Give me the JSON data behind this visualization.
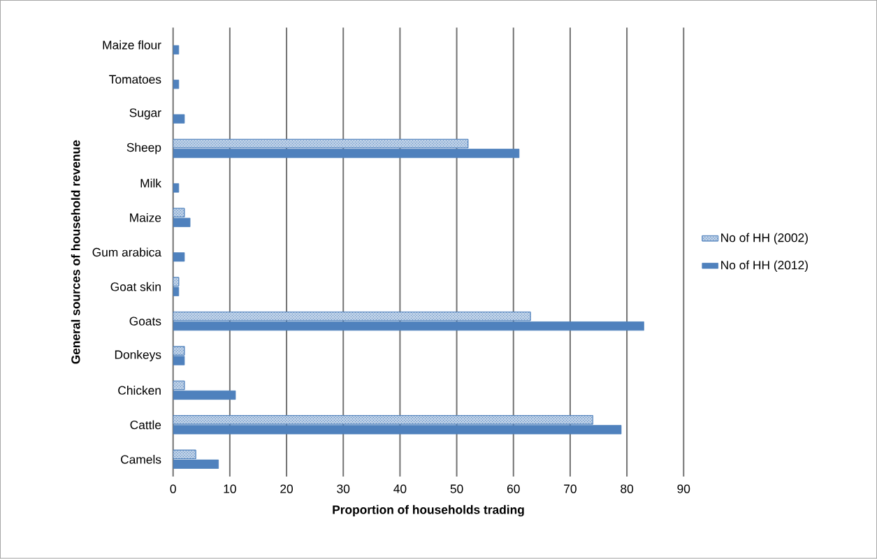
{
  "chart_data": {
    "type": "bar",
    "orientation": "horizontal",
    "xlabel": "Proportion of households trading",
    "ylabel": "General sources of household revenue",
    "categories": [
      "Maize flour",
      "Tomatoes",
      "Sugar",
      "Sheep",
      "Milk",
      "Maize",
      "Gum arabica",
      "Goat skin",
      "Goats",
      "Donkeys",
      "Chicken",
      "Cattle",
      "Camels"
    ],
    "series": [
      {
        "name": "No of HH (2002)",
        "color": "#4f81bd",
        "values": [
          null,
          null,
          null,
          52,
          null,
          2,
          null,
          1,
          63,
          2,
          2,
          74,
          4
        ]
      },
      {
        "name": "No of HH (2012)",
        "color": "#4f81bd",
        "values": [
          1,
          1,
          2,
          61,
          1,
          3,
          2,
          1,
          83,
          2,
          11,
          79,
          8
        ]
      }
    ],
    "xlim": [
      0,
      90
    ],
    "xticks": [
      0,
      10,
      20,
      30,
      40,
      50,
      60,
      70,
      80,
      90
    ],
    "grid": "x",
    "legend": "right"
  }
}
